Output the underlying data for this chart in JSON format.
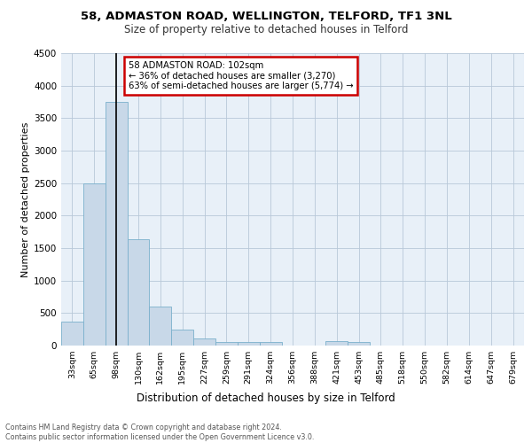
{
  "title1": "58, ADMASTON ROAD, WELLINGTON, TELFORD, TF1 3NL",
  "title2": "Size of property relative to detached houses in Telford",
  "xlabel": "Distribution of detached houses by size in Telford",
  "ylabel": "Number of detached properties",
  "footnote": "Contains HM Land Registry data © Crown copyright and database right 2024.\nContains public sector information licensed under the Open Government Licence v3.0.",
  "annotation_line1": "58 ADMASTON ROAD: 102sqm",
  "annotation_line2": "← 36% of detached houses are smaller (3,270)",
  "annotation_line3": "63% of semi-detached houses are larger (5,774) →",
  "bar_color": "#c8d8e8",
  "bar_edge_color": "#7ab0cc",
  "marker_line_color": "#000000",
  "background_color": "#e8f0f8",
  "annotation_box_edge": "#cc0000",
  "categories": [
    "33sqm",
    "65sqm",
    "98sqm",
    "130sqm",
    "162sqm",
    "195sqm",
    "227sqm",
    "259sqm",
    "291sqm",
    "324sqm",
    "356sqm",
    "388sqm",
    "421sqm",
    "453sqm",
    "485sqm",
    "518sqm",
    "550sqm",
    "582sqm",
    "614sqm",
    "647sqm",
    "679sqm"
  ],
  "values": [
    375,
    2500,
    3750,
    1640,
    600,
    240,
    105,
    60,
    50,
    50,
    0,
    0,
    65,
    55,
    0,
    0,
    0,
    0,
    0,
    0,
    0
  ],
  "ylim": [
    0,
    4500
  ],
  "yticks": [
    0,
    500,
    1000,
    1500,
    2000,
    2500,
    3000,
    3500,
    4000,
    4500
  ],
  "marker_bin_index": 2
}
